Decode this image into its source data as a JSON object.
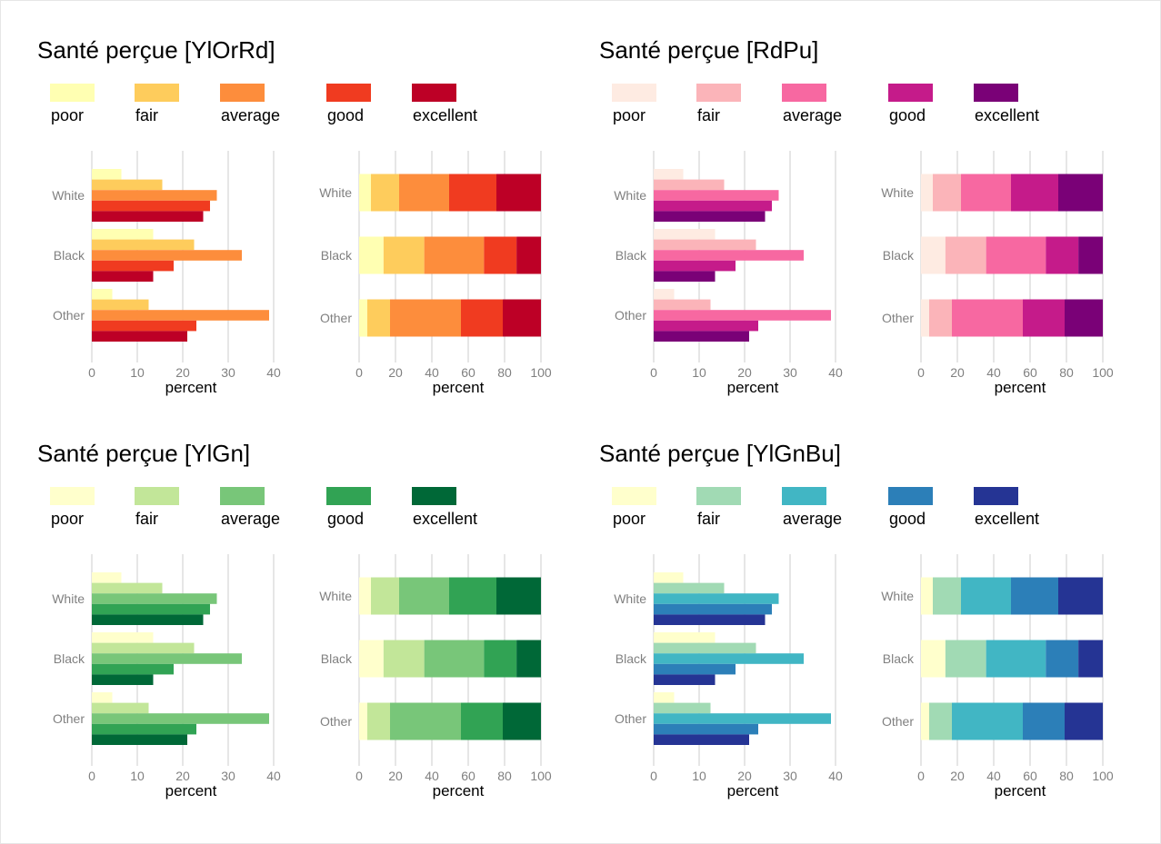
{
  "chart_data": [
    {
      "type": "bar",
      "title": "Santé perçue [YlOrRd]",
      "legend": {
        "placement": "top",
        "labels": [
          "poor",
          "fair",
          "average",
          "good",
          "excellent"
        ]
      },
      "colors": [
        "#FFFFB2",
        "#FECC5C",
        "#FD8D3C",
        "#F03B20",
        "#BD0026"
      ],
      "categories": [
        "White",
        "Black",
        "Other"
      ],
      "panels": [
        {
          "layout": "grouped-horizontal",
          "xlabel": "percent",
          "xlim": [
            0,
            40
          ],
          "xticks": [
            0,
            10,
            20,
            30,
            40
          ],
          "grid": true
        },
        {
          "layout": "stacked-horizontal",
          "xlabel": "percent",
          "xlim": [
            0,
            100
          ],
          "xticks": [
            0,
            20,
            40,
            60,
            80,
            100
          ],
          "grid": true
        }
      ],
      "series": [
        {
          "name": "poor",
          "values": [
            6.5,
            13.5,
            4.5
          ]
        },
        {
          "name": "fair",
          "values": [
            15.5,
            22.5,
            12.5
          ]
        },
        {
          "name": "average",
          "values": [
            27.5,
            33,
            39
          ]
        },
        {
          "name": "good",
          "values": [
            26,
            18,
            23
          ]
        },
        {
          "name": "excellent",
          "values": [
            24.5,
            13.5,
            21
          ]
        }
      ]
    },
    {
      "type": "bar",
      "title": "Santé perçue [RdPu]",
      "legend": {
        "placement": "top",
        "labels": [
          "poor",
          "fair",
          "average",
          "good",
          "excellent"
        ]
      },
      "colors": [
        "#FEEBE2",
        "#FBB4B9",
        "#F768A1",
        "#C51B8A",
        "#7A0177"
      ],
      "categories": [
        "White",
        "Black",
        "Other"
      ],
      "panels": [
        {
          "layout": "grouped-horizontal",
          "xlabel": "percent",
          "xlim": [
            0,
            40
          ],
          "xticks": [
            0,
            10,
            20,
            30,
            40
          ],
          "grid": true
        },
        {
          "layout": "stacked-horizontal",
          "xlabel": "percent",
          "xlim": [
            0,
            100
          ],
          "xticks": [
            0,
            20,
            40,
            60,
            80,
            100
          ],
          "grid": true
        }
      ],
      "series": [
        {
          "name": "poor",
          "values": [
            6.5,
            13.5,
            4.5
          ]
        },
        {
          "name": "fair",
          "values": [
            15.5,
            22.5,
            12.5
          ]
        },
        {
          "name": "average",
          "values": [
            27.5,
            33,
            39
          ]
        },
        {
          "name": "good",
          "values": [
            26,
            18,
            23
          ]
        },
        {
          "name": "excellent",
          "values": [
            24.5,
            13.5,
            21
          ]
        }
      ]
    },
    {
      "type": "bar",
      "title": "Santé perçue [YlGn]",
      "legend": {
        "placement": "top",
        "labels": [
          "poor",
          "fair",
          "average",
          "good",
          "excellent"
        ]
      },
      "colors": [
        "#FFFFCC",
        "#C2E699",
        "#78C679",
        "#31A354",
        "#006837"
      ],
      "categories": [
        "White",
        "Black",
        "Other"
      ],
      "panels": [
        {
          "layout": "grouped-horizontal",
          "xlabel": "percent",
          "xlim": [
            0,
            40
          ],
          "xticks": [
            0,
            10,
            20,
            30,
            40
          ],
          "grid": true
        },
        {
          "layout": "stacked-horizontal",
          "xlabel": "percent",
          "xlim": [
            0,
            100
          ],
          "xticks": [
            0,
            20,
            40,
            60,
            80,
            100
          ],
          "grid": true
        }
      ],
      "series": [
        {
          "name": "poor",
          "values": [
            6.5,
            13.5,
            4.5
          ]
        },
        {
          "name": "fair",
          "values": [
            15.5,
            22.5,
            12.5
          ]
        },
        {
          "name": "average",
          "values": [
            27.5,
            33,
            39
          ]
        },
        {
          "name": "good",
          "values": [
            26,
            18,
            23
          ]
        },
        {
          "name": "excellent",
          "values": [
            24.5,
            13.5,
            21
          ]
        }
      ]
    },
    {
      "type": "bar",
      "title": "Santé perçue [YlGnBu]",
      "legend": {
        "placement": "top",
        "labels": [
          "poor",
          "fair",
          "average",
          "good",
          "excellent"
        ]
      },
      "colors": [
        "#FFFFCC",
        "#A1DAB4",
        "#41B6C4",
        "#2C7FB8",
        "#253494"
      ],
      "categories": [
        "White",
        "Black",
        "Other"
      ],
      "panels": [
        {
          "layout": "grouped-horizontal",
          "xlabel": "percent",
          "xlim": [
            0,
            40
          ],
          "xticks": [
            0,
            10,
            20,
            30,
            40
          ],
          "grid": true
        },
        {
          "layout": "stacked-horizontal",
          "xlabel": "percent",
          "xlim": [
            0,
            100
          ],
          "xticks": [
            0,
            20,
            40,
            60,
            80,
            100
          ],
          "grid": true
        }
      ],
      "series": [
        {
          "name": "poor",
          "values": [
            6.5,
            13.5,
            4.5
          ]
        },
        {
          "name": "fair",
          "values": [
            15.5,
            22.5,
            12.5
          ]
        },
        {
          "name": "average",
          "values": [
            27.5,
            33,
            39
          ]
        },
        {
          "name": "good",
          "values": [
            26,
            18,
            23
          ]
        },
        {
          "name": "excellent",
          "values": [
            24.5,
            13.5,
            21
          ]
        }
      ]
    }
  ]
}
